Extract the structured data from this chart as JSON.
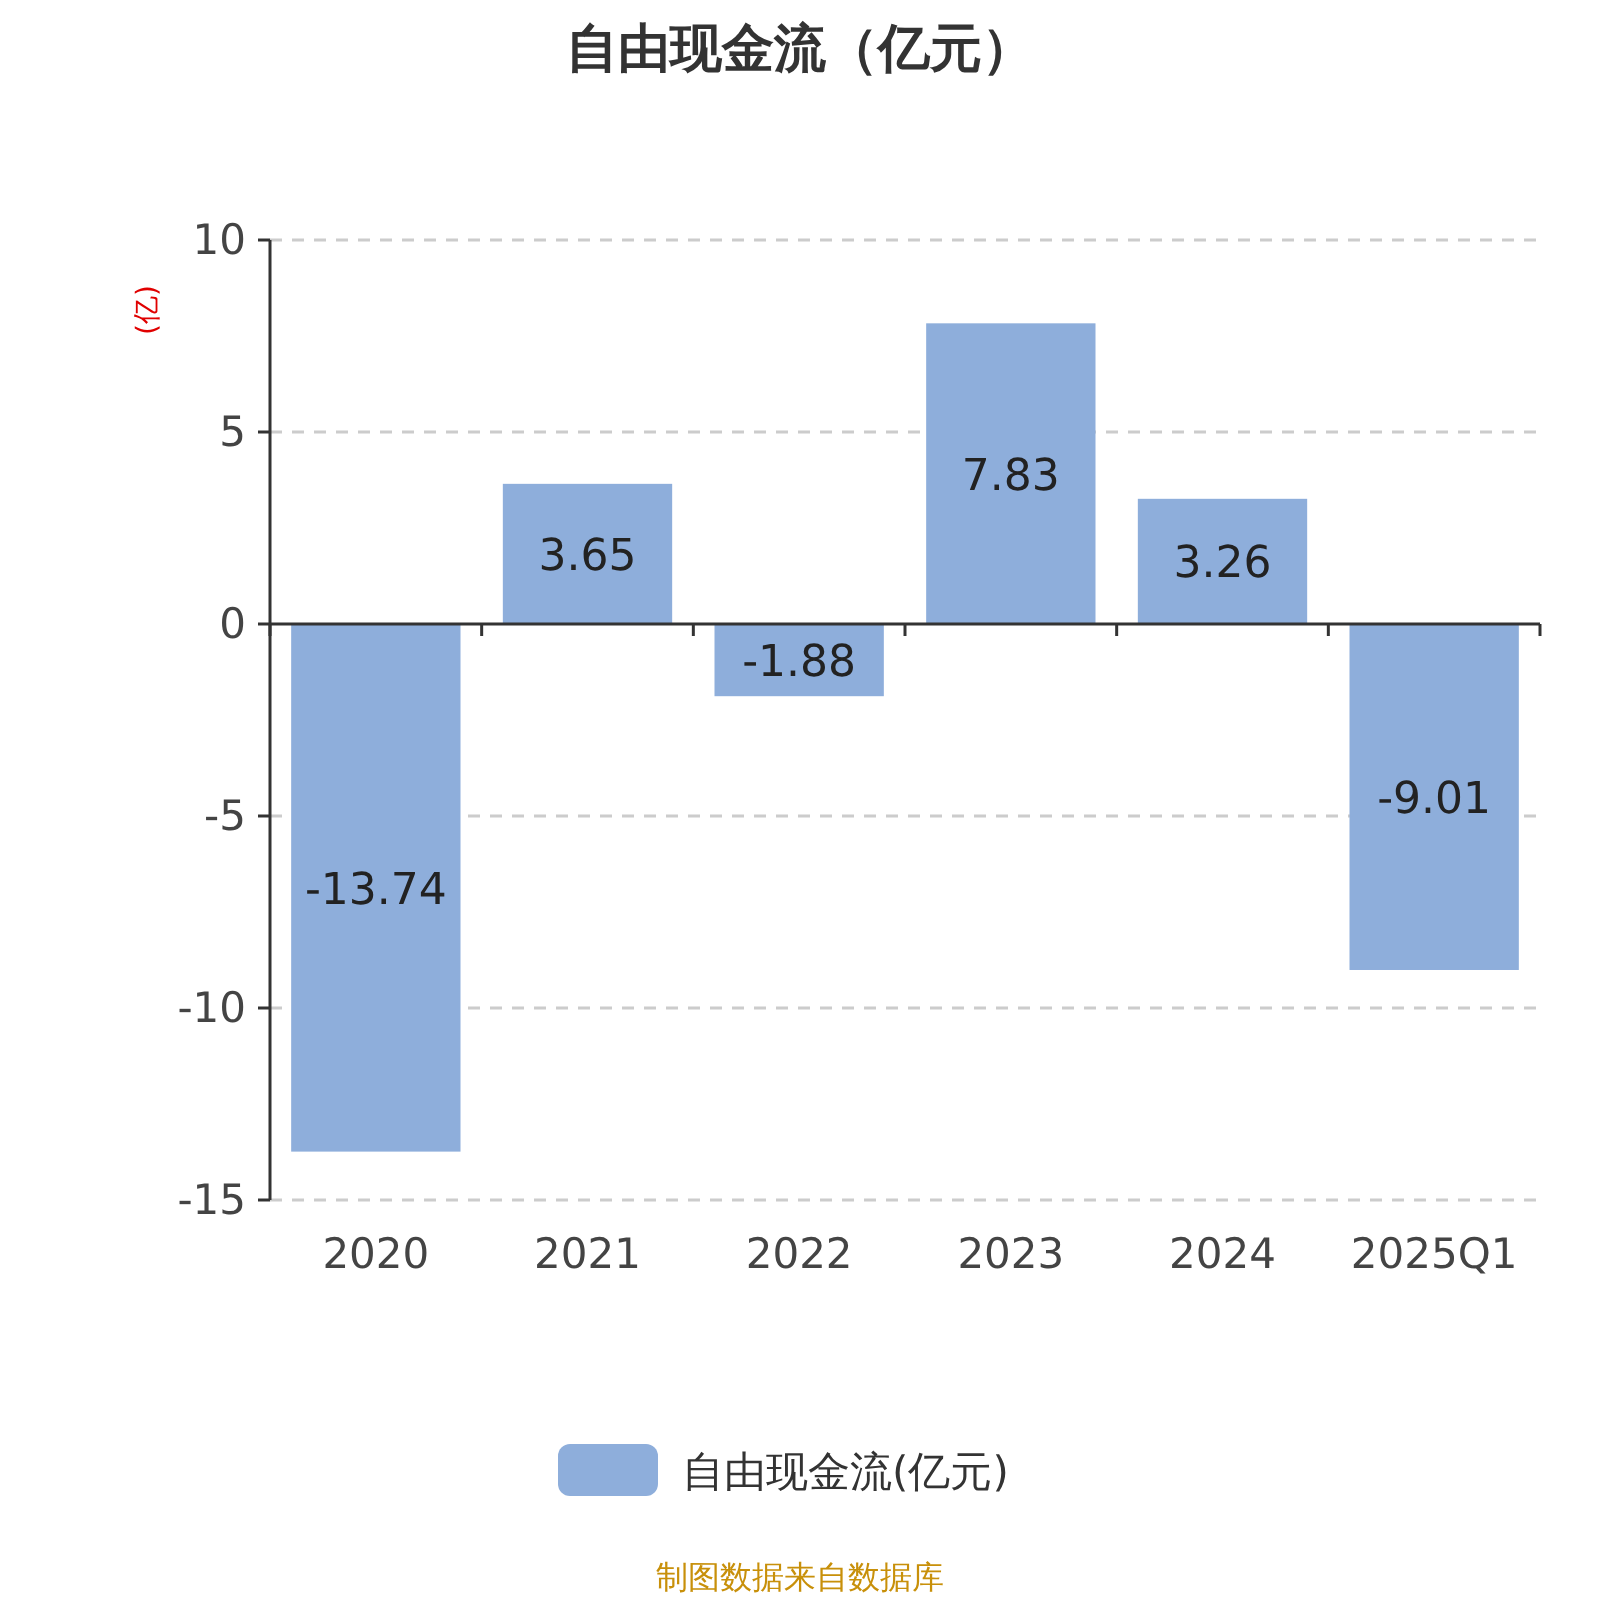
{
  "chart_data": {
    "type": "bar",
    "title": "自由现金流（亿元）",
    "ylabel": "(亿)",
    "categories": [
      "2020",
      "2021",
      "2022",
      "2023",
      "2024",
      "2025Q1"
    ],
    "series": [
      {
        "name": "自由现金流(亿元)",
        "color": "#8eaedb",
        "values": [
          -13.74,
          3.65,
          -1.88,
          7.83,
          3.26,
          -9.01
        ]
      }
    ],
    "ylim": [
      -15,
      10
    ],
    "yticks": [
      -15,
      -10,
      -5,
      0,
      5,
      10
    ],
    "grid": "y",
    "legend": "bottom",
    "data_labels": true,
    "annotations": [
      "制图数据来自数据库"
    ]
  }
}
